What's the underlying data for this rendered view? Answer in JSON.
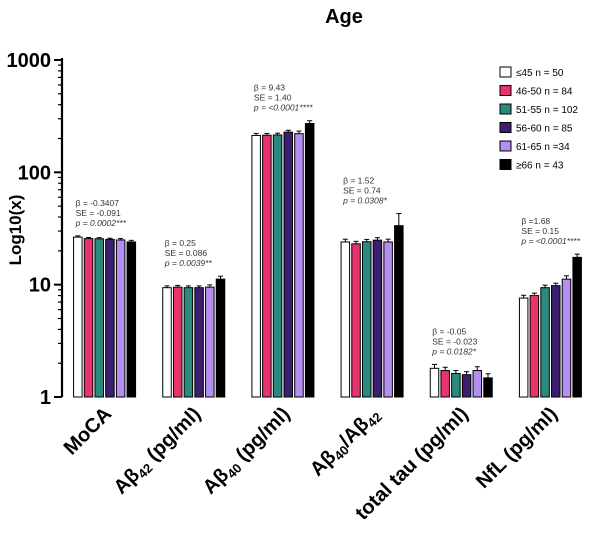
{
  "chart_data": {
    "type": "bar",
    "title": "Age",
    "ylabel": "Log10(x)",
    "yscale": "log",
    "ylim": [
      1,
      1000
    ],
    "yticks": [
      "1",
      "10",
      "100",
      "1000"
    ],
    "categories": [
      {
        "label": "MoCA",
        "segments": [
          {
            "t": "MoCA"
          }
        ]
      },
      {
        "label": "Aβ42 (pg/ml)",
        "segments": [
          {
            "t": "Aβ"
          },
          {
            "t": "42",
            "sub": true
          },
          {
            "t": " (pg/ml)"
          }
        ]
      },
      {
        "label": "Aβ40 (pg/ml)",
        "segments": [
          {
            "t": "Aβ"
          },
          {
            "t": "40",
            "sub": true
          },
          {
            "t": " (pg/ml)"
          }
        ]
      },
      {
        "label": "Aβ40/Aβ42",
        "segments": [
          {
            "t": "Aβ"
          },
          {
            "t": "40",
            "sub": true
          },
          {
            "t": "/Aβ"
          },
          {
            "t": "42",
            "sub": true
          }
        ]
      },
      {
        "label": "total tau (pg/ml)",
        "segments": [
          {
            "t": "total tau (pg/ml)"
          }
        ]
      },
      {
        "label": "NfL (pg/ml)",
        "segments": [
          {
            "t": "NfL (pg/ml)"
          }
        ]
      }
    ],
    "series": [
      {
        "name": "≤45 n = 50",
        "color": "#ffffff",
        "values": [
          26.5,
          9.4,
          213,
          24.0,
          1.8,
          7.6
        ],
        "errors": [
          0.7,
          0.35,
          9,
          1.4,
          0.15,
          0.45
        ]
      },
      {
        "name": "46-50 n = 84",
        "color": "#e8336d",
        "values": [
          25.7,
          9.5,
          214,
          23.1,
          1.72,
          8.0
        ],
        "errors": [
          0.6,
          0.35,
          8,
          1.2,
          0.12,
          0.4
        ]
      },
      {
        "name": "51-55 n = 102",
        "color": "#2a8a7e",
        "values": [
          25.6,
          9.4,
          215,
          24.1,
          1.62,
          9.4
        ],
        "errors": [
          0.6,
          0.35,
          8,
          1.2,
          0.1,
          0.5
        ]
      },
      {
        "name": "56-60 n = 85",
        "color": "#3b1f6e",
        "values": [
          25.3,
          9.4,
          228,
          24.9,
          1.58,
          9.8
        ],
        "errors": [
          0.6,
          0.35,
          9,
          1.3,
          0.1,
          0.5
        ]
      },
      {
        "name": "61-65 n =34",
        "color": "#b48ef0",
        "values": [
          25.0,
          9.5,
          221,
          24.0,
          1.72,
          11.2
        ],
        "errors": [
          0.7,
          0.45,
          12,
          1.4,
          0.14,
          0.8
        ]
      },
      {
        "name": "≥66 n = 43",
        "color": "#000000",
        "values": [
          24.0,
          11.2,
          272,
          33.5,
          1.48,
          17.5
        ],
        "errors": [
          0.8,
          0.7,
          16,
          9.5,
          0.13,
          1.2
        ]
      }
    ],
    "annotations": [
      {
        "category": 0,
        "lines": [
          "β = -0.3407",
          "SE = -0.091",
          "p = 0.0002***"
        ]
      },
      {
        "category": 1,
        "lines": [
          "β = 0.25",
          "SE = 0.086",
          "p = 0.0039**"
        ]
      },
      {
        "category": 2,
        "lines": [
          "β = 9.43",
          "SE = 1.40",
          "p = <0.0001****"
        ]
      },
      {
        "category": 3,
        "lines": [
          "β = 1.52",
          "SE = 0.74",
          "p = 0.0308*"
        ]
      },
      {
        "category": 4,
        "lines": [
          "β = -0.05",
          "SE = -0.023",
          "p = 0.0182*"
        ]
      },
      {
        "category": 5,
        "lines": [
          "β =1.68",
          "SE = 0.15",
          "p = <0.0001****"
        ]
      }
    ],
    "legend_position": "top-right",
    "grid": false
  }
}
